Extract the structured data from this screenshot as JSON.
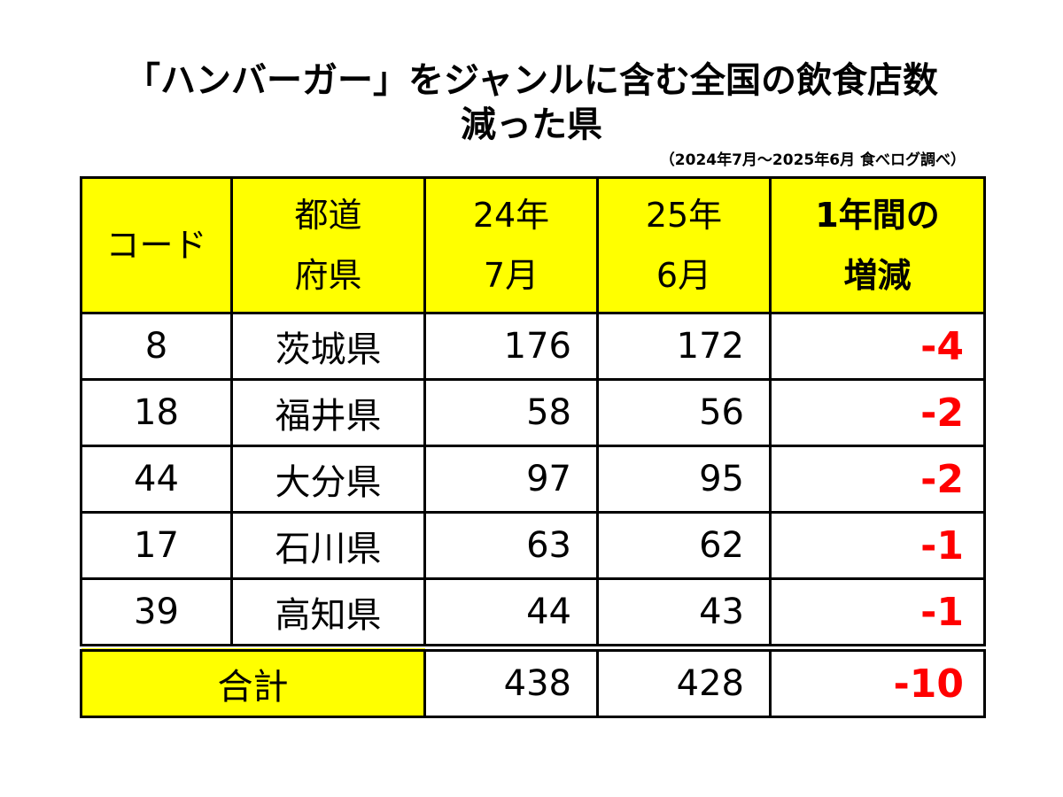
{
  "title": {
    "line1": "「ハンバーガー」をジャンルに含む全国の飲食店数",
    "line2": "減った県"
  },
  "source": "（2024年7月～2025年6月 食べログ調べ）",
  "colors": {
    "header_bg": "#ffff00",
    "decrease": "#ff0000"
  },
  "table": {
    "headers": {
      "code": "コード",
      "pref_line1": "都道",
      "pref_line2": "府県",
      "y24_line1": "24年",
      "y24_line2": "7月",
      "y25_line1": "25年",
      "y25_line2": "6月",
      "diff_line1": "1年間の",
      "diff_line2": "増減"
    },
    "rows": [
      {
        "code": "8",
        "pref": "茨城県",
        "y24": "176",
        "y25": "172",
        "diff": "-4"
      },
      {
        "code": "18",
        "pref": "福井県",
        "y24": "58",
        "y25": "56",
        "diff": "-2"
      },
      {
        "code": "44",
        "pref": "大分県",
        "y24": "97",
        "y25": "95",
        "diff": "-2"
      },
      {
        "code": "17",
        "pref": "石川県",
        "y24": "63",
        "y25": "62",
        "diff": "-1"
      },
      {
        "code": "39",
        "pref": "高知県",
        "y24": "44",
        "y25": "43",
        "diff": "-1"
      }
    ],
    "total": {
      "label": "合計",
      "y24": "438",
      "y25": "428",
      "diff": "-10"
    }
  }
}
